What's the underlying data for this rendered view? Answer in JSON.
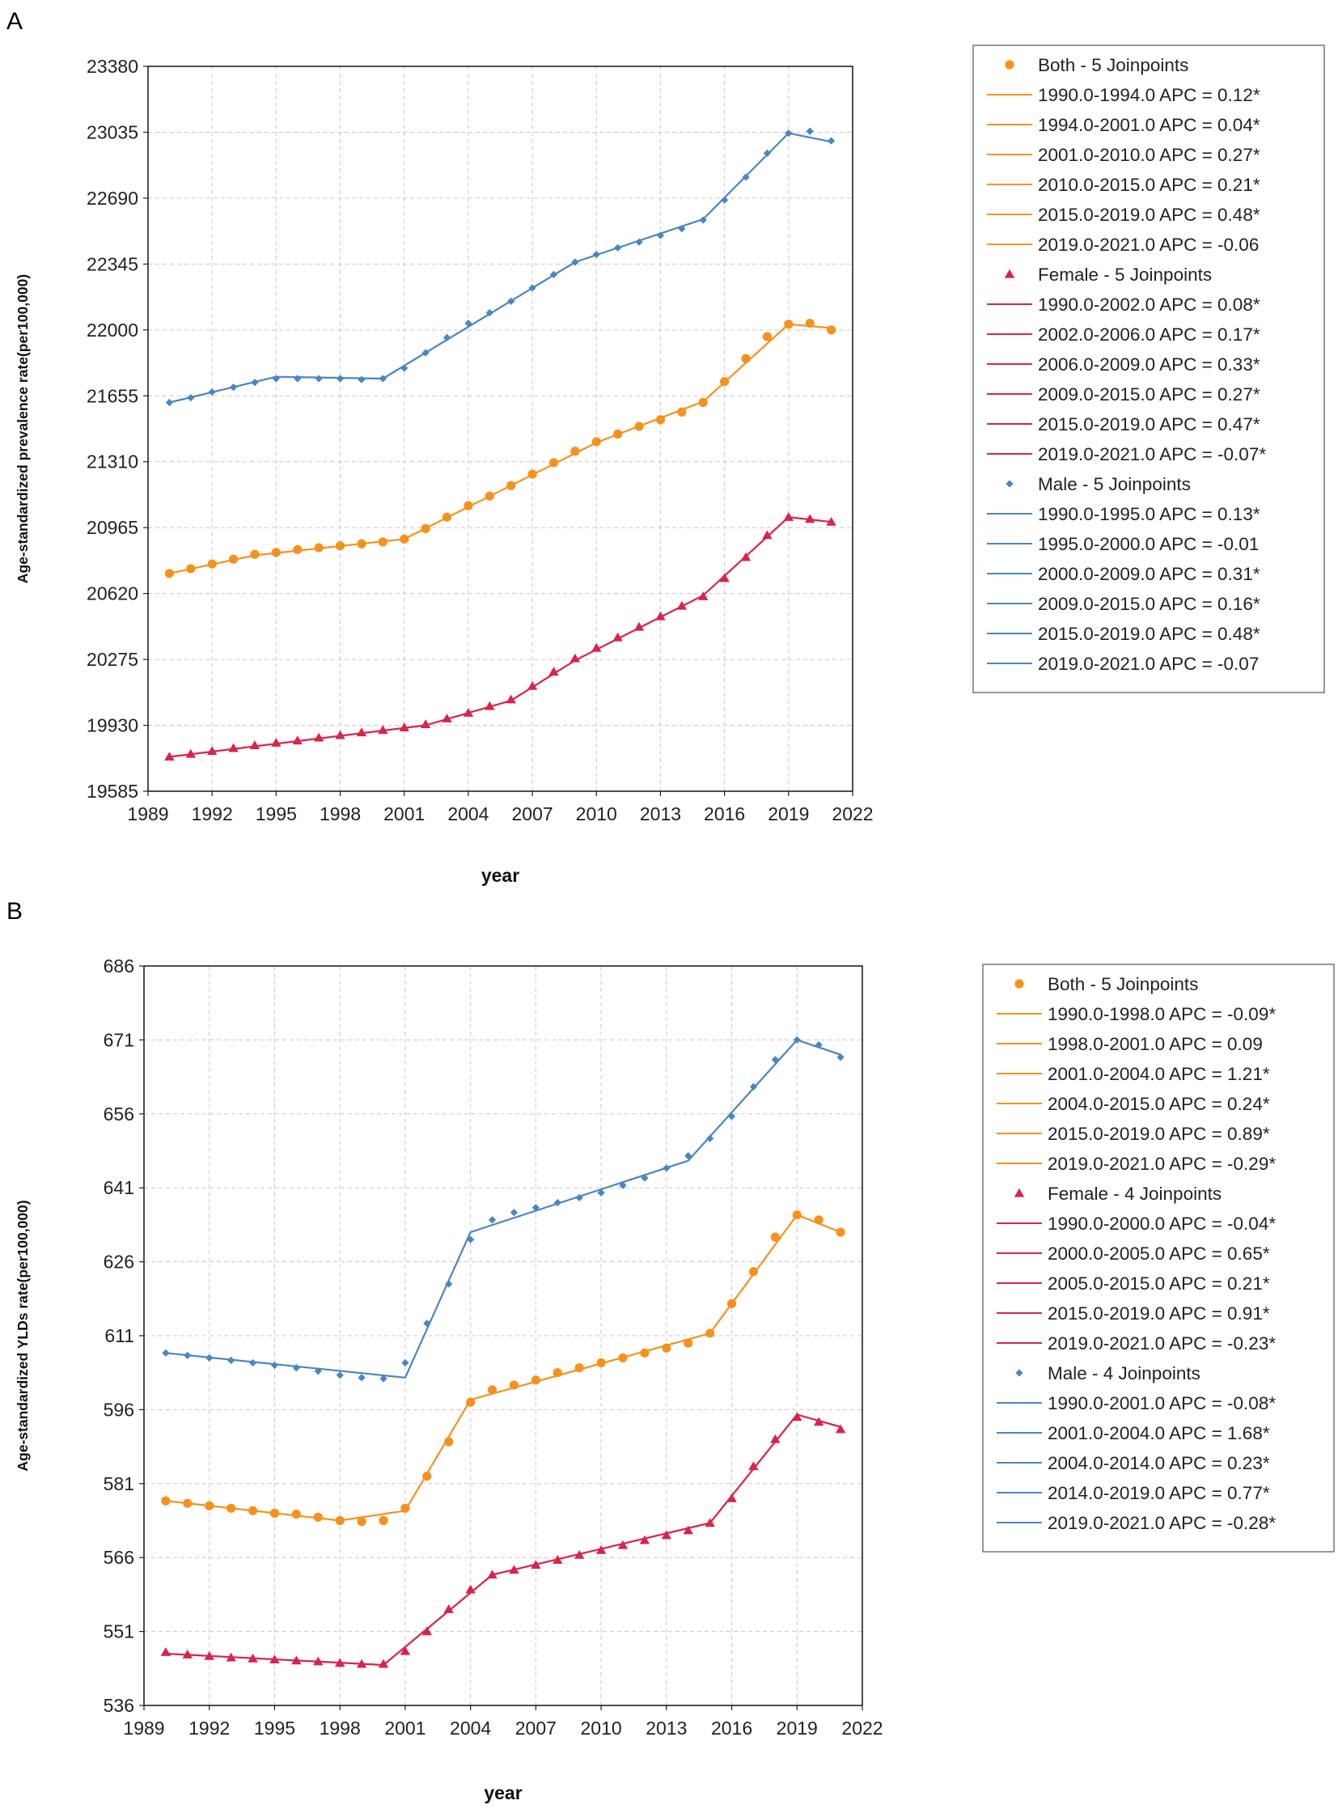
{
  "colors": {
    "both": "#F5921E",
    "female": "#D9244A",
    "male": "#4A86C0",
    "grid": "#c8c8c8",
    "frame": "#222222"
  },
  "chart_data": [
    {
      "panel_label": "A",
      "type": "line",
      "xlabel": "year",
      "ylabel": "Age-standardized prevalence rate(per100,000)",
      "xlim": [
        1989,
        2022
      ],
      "ylim": [
        19585,
        23380
      ],
      "x_ticks": [
        "1989",
        "1992",
        "1995",
        "1998",
        "2001",
        "2004",
        "2007",
        "2010",
        "2013",
        "2016",
        "2019",
        "2022"
      ],
      "y_ticks": [
        "19585",
        "19930",
        "20275",
        "20620",
        "20965",
        "21310",
        "21655",
        "22000",
        "22345",
        "22690",
        "23035",
        "23380"
      ],
      "legend_position": "right",
      "series": [
        {
          "name": "Both",
          "color_key": "both",
          "marker": "circle",
          "legend_label": "Both - 5 Joinpoints",
          "observed": {
            "x": [
              1990,
              1991,
              1992,
              1993,
              1994,
              1995,
              1996,
              1997,
              1998,
              1999,
              2000,
              2001,
              2002,
              2003,
              2004,
              2005,
              2006,
              2007,
              2008,
              2009,
              2010,
              2011,
              2012,
              2013,
              2014,
              2015,
              2016,
              2017,
              2018,
              2019,
              2020,
              2021
            ],
            "y": [
              20725,
              20750,
              20775,
              20800,
              20825,
              20835,
              20850,
              20860,
              20870,
              20880,
              20890,
              20905,
              20960,
              21020,
              21080,
              21130,
              21185,
              21245,
              21305,
              21365,
              21415,
              21455,
              21495,
              21530,
              21570,
              21620,
              21730,
              21850,
              21965,
              22030,
              22035,
              22000
            ]
          },
          "fitted": {
            "x": [
              1990,
              1994,
              2001,
              2010,
              2015,
              2019,
              2021
            ],
            "y": [
              20725,
              20820,
              20905,
              21410,
              21625,
              22030,
              22010
            ]
          },
          "segments": [
            "1990.0-1994.0 APC  =  0.12*",
            "1994.0-2001.0 APC  =  0.04*",
            "2001.0-2010.0 APC  =  0.27*",
            "2010.0-2015.0 APC  =  0.21*",
            "2015.0-2019.0 APC  =  0.48*",
            "2019.0-2021.0 APC  =  -0.06"
          ]
        },
        {
          "name": "Female",
          "color_key": "female",
          "marker": "triangle",
          "legend_label": "Female - 5 Joinpoints",
          "observed": {
            "x": [
              1990,
              1991,
              1992,
              1993,
              1994,
              1995,
              1996,
              1997,
              1998,
              1999,
              2000,
              2001,
              2002,
              2003,
              2004,
              2005,
              2006,
              2007,
              2008,
              2009,
              2010,
              2011,
              2012,
              2013,
              2014,
              2015,
              2016,
              2017,
              2018,
              2019,
              2020,
              2021
            ],
            "y": [
              19765,
              19780,
              19795,
              19810,
              19825,
              19838,
              19850,
              19865,
              19878,
              19892,
              19905,
              19918,
              19935,
              19965,
              19995,
              20030,
              20065,
              20135,
              20210,
              20280,
              20335,
              20390,
              20445,
              20500,
              20555,
              20605,
              20700,
              20810,
              20925,
              21020,
              21010,
              20995
            ]
          },
          "fitted": {
            "x": [
              1990,
              2002,
              2006,
              2009,
              2015,
              2019,
              2021
            ],
            "y": [
              19765,
              19930,
              20060,
              20270,
              20610,
              21020,
              20995
            ]
          },
          "segments": [
            "1990.0-2002.0 APC  =  0.08*",
            "2002.0-2006.0 APC  =  0.17*",
            "2006.0-2009.0 APC  =  0.33*",
            "2009.0-2015.0 APC  =  0.27*",
            "2015.0-2019.0 APC  =  0.47*",
            "2019.0-2021.0 APC  =  -0.07*"
          ]
        },
        {
          "name": "Male",
          "color_key": "male",
          "marker": "diamond",
          "legend_label": "Male - 5 Joinpoints",
          "observed": {
            "x": [
              1990,
              1991,
              1992,
              1993,
              1994,
              1995,
              1996,
              1997,
              1998,
              1999,
              2000,
              2001,
              2002,
              2003,
              2004,
              2005,
              2006,
              2007,
              2008,
              2009,
              2010,
              2011,
              2012,
              2013,
              2014,
              2015,
              2016,
              2017,
              2018,
              2019,
              2020,
              2021
            ],
            "y": [
              21620,
              21645,
              21675,
              21700,
              21725,
              21745,
              21745,
              21745,
              21745,
              21740,
              21745,
              21800,
              21880,
              21960,
              22035,
              22090,
              22150,
              22220,
              22290,
              22355,
              22395,
              22430,
              22460,
              22495,
              22530,
              22575,
              22680,
              22800,
              22925,
              23030,
              23040,
              22990
            ]
          },
          "fitted": {
            "x": [
              1990,
              1995,
              2000,
              2009,
              2015,
              2019,
              2021
            ],
            "y": [
              21620,
              21755,
              21745,
              22355,
              22580,
              23030,
              22985
            ]
          },
          "segments": [
            "1990.0-1995.0 APC  =  0.13*",
            "1995.0-2000.0 APC  =  -0.01",
            "2000.0-2009.0 APC  =  0.31*",
            "2009.0-2015.0 APC  =  0.16*",
            "2015.0-2019.0 APC  =  0.48*",
            "2019.0-2021.0 APC  =  -0.07"
          ]
        }
      ]
    },
    {
      "panel_label": "B",
      "type": "line",
      "xlabel": "year",
      "ylabel": "Age-standardized YLDs rate(per100,000)",
      "xlim": [
        1989,
        2022
      ],
      "ylim": [
        536,
        686
      ],
      "x_ticks": [
        "1989",
        "1992",
        "1995",
        "1998",
        "2001",
        "2004",
        "2007",
        "2010",
        "2013",
        "2016",
        "2019",
        "2022"
      ],
      "y_ticks": [
        "536",
        "551",
        "566",
        "581",
        "596",
        "611",
        "626",
        "641",
        "656",
        "671",
        "686"
      ],
      "legend_position": "right",
      "series": [
        {
          "name": "Both",
          "color_key": "both",
          "marker": "circle",
          "legend_label": "Both - 5 Joinpoints",
          "observed": {
            "x": [
              1990,
              1991,
              1992,
              1993,
              1994,
              1995,
              1996,
              1997,
              1998,
              1999,
              2000,
              2001,
              2002,
              2003,
              2004,
              2005,
              2006,
              2007,
              2008,
              2009,
              2010,
              2011,
              2012,
              2013,
              2014,
              2015,
              2016,
              2017,
              2018,
              2019,
              2020,
              2021
            ],
            "y": [
              577.5,
              577,
              576.5,
              576,
              575.5,
              575,
              574.8,
              574.2,
              573.5,
              573.3,
              573.5,
              576,
              582.5,
              589.5,
              597.5,
              600,
              601,
              602,
              603.5,
              604.5,
              605.5,
              606.5,
              607.5,
              608.5,
              609.5,
              611.5,
              617.5,
              624,
              631,
              635.5,
              634.5,
              632
            ]
          },
          "fitted": {
            "x": [
              1990,
              1998,
              2001,
              2004,
              2015,
              2019,
              2021
            ],
            "y": [
              577.5,
              573.5,
              575.5,
              598,
              611.5,
              635.5,
              632
            ]
          },
          "segments": [
            "1990.0-1998.0 APC  =  -0.09*",
            "1998.0-2001.0 APC  =  0.09",
            "2001.0-2004.0 APC  =  1.21*",
            "2004.0-2015.0 APC  =  0.24*",
            "2015.0-2019.0 APC  =  0.89*",
            "2019.0-2021.0 APC  =  -0.29*"
          ]
        },
        {
          "name": "Female",
          "color_key": "female",
          "marker": "triangle",
          "legend_label": "Female - 4 Joinpoints",
          "observed": {
            "x": [
              1990,
              1991,
              1992,
              1993,
              1994,
              1995,
              1996,
              1997,
              1998,
              1999,
              2000,
              2001,
              2002,
              2003,
              2004,
              2005,
              2006,
              2007,
              2008,
              2009,
              2010,
              2011,
              2012,
              2013,
              2014,
              2015,
              2016,
              2017,
              2018,
              2019,
              2020,
              2021
            ],
            "y": [
              546.8,
              546.3,
              546,
              545.7,
              545.5,
              545.3,
              545.1,
              544.9,
              544.6,
              544.4,
              544.4,
              547,
              551,
              555.5,
              559.5,
              562.5,
              563.5,
              564.5,
              565.5,
              566.5,
              567.5,
              568.5,
              569.5,
              570.5,
              571.5,
              573,
              578,
              584.5,
              590,
              594.5,
              593.5,
              592
            ]
          },
          "fitted": {
            "x": [
              1990,
              2000,
              2005,
              2015,
              2019,
              2021
            ],
            "y": [
              546.5,
              544.2,
              562.5,
              573,
              595,
              592.5
            ]
          },
          "segments": [
            "1990.0-2000.0 APC  =  -0.04*",
            "2000.0-2005.0 APC  =  0.65*",
            "2005.0-2015.0 APC  =  0.21*",
            "2015.0-2019.0 APC  =  0.91*",
            "2019.0-2021.0 APC  =  -0.23*"
          ]
        },
        {
          "name": "Male",
          "color_key": "male",
          "marker": "diamond",
          "legend_label": "Male - 4 Joinpoints",
          "observed": {
            "x": [
              1990,
              1991,
              1992,
              1993,
              1994,
              1995,
              1996,
              1997,
              1998,
              1999,
              2000,
              2001,
              2002,
              2003,
              2004,
              2005,
              2006,
              2007,
              2008,
              2009,
              2010,
              2011,
              2012,
              2013,
              2014,
              2015,
              2016,
              2017,
              2018,
              2019,
              2020,
              2021
            ],
            "y": [
              607.5,
              607,
              606.5,
              606,
              605.5,
              605,
              604.5,
              603.8,
              603,
              602.5,
              602.3,
              605.5,
              613.5,
              621.5,
              630.5,
              634.5,
              636,
              637,
              638,
              639,
              640,
              641.5,
              643,
              645,
              647.5,
              651,
              655.5,
              661.5,
              667,
              671,
              670,
              667.5
            ]
          },
          "fitted": {
            "x": [
              1990,
              2001,
              2004,
              2014,
              2019,
              2021
            ],
            "y": [
              607.5,
              602.5,
              632,
              646.5,
              671,
              668
            ]
          },
          "segments": [
            "1990.0-2001.0 APC  =  -0.08*",
            "2001.0-2004.0 APC  =  1.68*",
            "2004.0-2014.0 APC  =  0.23*",
            "2014.0-2019.0 APC  =  0.77*",
            "2019.0-2021.0 APC  =  -0.28*"
          ]
        }
      ]
    }
  ]
}
